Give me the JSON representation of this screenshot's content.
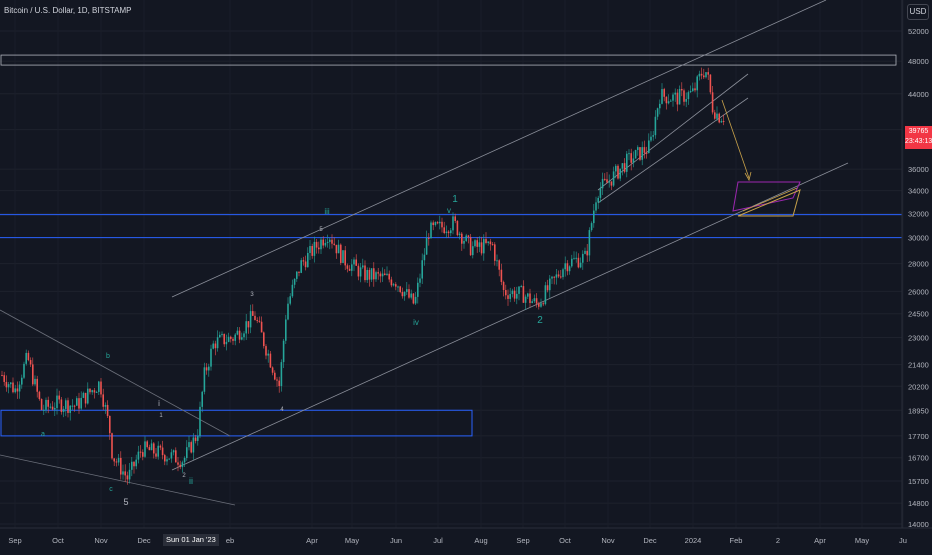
{
  "header": {
    "symbol": "Bitcoin / U.S. Dollar, 1D, BITSTAMP"
  },
  "price_axis": {
    "currency_button": "USD",
    "ticks": [
      "52000",
      "48000",
      "44000",
      "40000",
      "36000",
      "34000",
      "32000",
      "30000",
      "28000",
      "26000",
      "24500",
      "23000",
      "21400",
      "20200",
      "18950",
      "17700",
      "16700",
      "15700",
      "14800",
      "14000"
    ]
  },
  "last_price": {
    "price": "39765",
    "countdown": "23:43:13"
  },
  "time_axis": {
    "labels": [
      "Sep",
      "Oct",
      "Nov",
      "Dec",
      "eb",
      "Apr",
      "May",
      "Jun",
      "Jul",
      "Aug",
      "Sep",
      "Oct",
      "Nov",
      "Dec",
      "2024",
      "Feb",
      "2",
      "Apr",
      "May",
      "Ju"
    ],
    "crosshair_date": "Sun 01 Jan '23"
  },
  "wave_labels": [
    "b",
    "a",
    "c",
    "5",
    "i",
    "1",
    "2",
    "ii",
    "3",
    "4",
    "iii",
    "5",
    "iv",
    "v",
    "1",
    "2"
  ],
  "colors": {
    "background": "#131722",
    "up": "#26a69a",
    "down": "#ef5350",
    "accent": "#f23645",
    "zone_blue": "#2962ff"
  },
  "chart_data": {
    "type": "candlestick",
    "symbol": "BTCUSD",
    "interval": "1D",
    "exchange": "BITSTAMP",
    "series": [
      {
        "name": "Bitcoin / U.S. Dollar",
        "x": [
          "2022-08-15",
          "2022-09-01",
          "2022-09-10",
          "2022-09-20",
          "2022-10-01",
          "2022-10-15",
          "2022-11-01",
          "2022-11-08",
          "2022-11-10",
          "2022-11-21",
          "2022-12-01",
          "2022-12-15",
          "2022-12-31",
          "2023-01-10",
          "2023-01-15",
          "2023-01-22",
          "2023-02-05",
          "2023-02-20",
          "2023-03-10",
          "2023-03-15",
          "2023-03-25",
          "2023-04-14",
          "2023-04-25",
          "2023-05-10",
          "2023-06-01",
          "2023-06-15",
          "2023-06-25",
          "2023-07-13",
          "2023-07-25",
          "2023-08-10",
          "2023-08-18",
          "2023-09-01",
          "2023-09-11",
          "2023-09-25",
          "2023-10-01",
          "2023-10-16",
          "2023-10-24",
          "2023-11-01",
          "2023-11-15",
          "2023-12-01",
          "2023-12-08",
          "2023-12-20",
          "2024-01-01",
          "2024-01-08",
          "2024-01-11",
          "2024-01-15",
          "2024-01-19"
        ],
        "close": [
          21500,
          20000,
          21800,
          19000,
          19300,
          19200,
          20400,
          18000,
          16800,
          15800,
          17100,
          16900,
          16600,
          17800,
          20800,
          22700,
          23000,
          24400,
          20200,
          24900,
          27900,
          30400,
          28300,
          27200,
          26800,
          25100,
          30500,
          31200,
          29200,
          29400,
          26000,
          25800,
          25100,
          27000,
          28000,
          28500,
          34000,
          34800,
          36800,
          38200,
          43800,
          43500,
          44100,
          46800,
          46600,
          42500,
          41500
        ]
      }
    ],
    "annotations": {
      "horizontal_levels": [
        48000,
        31900,
        30000
      ],
      "blue_zones": [
        [
          17700,
          18950
        ]
      ],
      "target_boxes": [
        [
          32400,
          34800
        ]
      ],
      "trend_channels": 3
    },
    "ylim": [
      14000,
      54000
    ],
    "scale": "log"
  }
}
